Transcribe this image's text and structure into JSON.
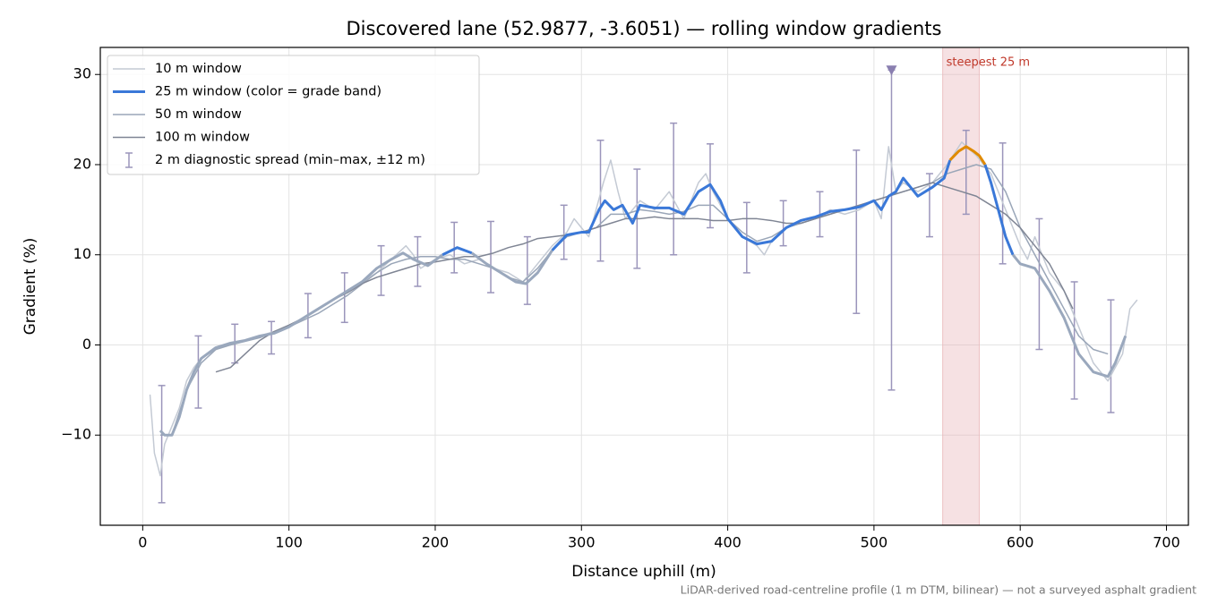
{
  "chart_data": {
    "type": "line",
    "title": "Discovered lane (52.9877, -3.6051) — rolling window gradients",
    "x_label": "Distance uphill (m)",
    "y_label": "Gradient (%)",
    "footnote": "LiDAR-derived road-centreline profile (1 m DTM, bilinear) — not a surveyed asphalt gradient",
    "xlim": [
      -29,
      715
    ],
    "ylim": [
      -20,
      33
    ],
    "xticks": [
      0,
      100,
      200,
      300,
      400,
      500,
      600,
      700
    ],
    "yticks": [
      {
        "value": -10,
        "label": "−10"
      },
      0,
      10,
      20,
      30
    ],
    "grid": true,
    "legend": "upper left",
    "series": [
      {
        "name": "10 m window",
        "color": "#c4cad4",
        "width": 1.5,
        "x": [
          5,
          8,
          12,
          15,
          20,
          25,
          30,
          35,
          40,
          50,
          60,
          70,
          80,
          90,
          100,
          110,
          120,
          130,
          140,
          150,
          160,
          170,
          180,
          185,
          190,
          200,
          210,
          220,
          230,
          240,
          250,
          260,
          270,
          280,
          290,
          295,
          300,
          305,
          310,
          315,
          320,
          325,
          330,
          340,
          350,
          360,
          370,
          380,
          385,
          390,
          400,
          410,
          420,
          425,
          430,
          440,
          450,
          460,
          470,
          480,
          490,
          500,
          505,
          510,
          515,
          520,
          530,
          540,
          550,
          560,
          570,
          580,
          590,
          600,
          605,
          610,
          620,
          630,
          640,
          650,
          660,
          670,
          675,
          680
        ],
        "values": [
          -5.5,
          -12,
          -14.5,
          -11,
          -9,
          -7,
          -4,
          -2.5,
          -1.5,
          -0.5,
          0,
          0.5,
          1,
          1.5,
          2,
          3,
          4,
          5,
          6,
          7,
          8,
          9.5,
          11,
          10,
          8.5,
          9.5,
          10,
          9,
          9.5,
          8.5,
          8,
          7,
          9,
          11,
          12.5,
          14,
          13,
          12,
          15,
          18,
          20.5,
          17,
          14,
          16,
          15,
          17,
          14,
          18,
          19,
          17,
          14,
          12,
          11,
          10,
          11.5,
          13,
          13.5,
          14,
          15,
          14.5,
          15,
          16,
          14,
          22,
          17,
          18,
          17,
          18,
          20,
          22.5,
          21,
          19,
          15,
          11,
          9.5,
          12,
          8,
          6,
          2,
          -2,
          -4,
          -1,
          4,
          5
        ]
      },
      {
        "name": "25 m window (color = grade band)",
        "color": "#3a78d8",
        "width": 3,
        "grade_bands": [
          {
            "below": 10,
            "color": "#9aa8bd"
          },
          {
            "below": 20,
            "color": "#3a78d8"
          },
          {
            "color": "#e08a00"
          }
        ],
        "x": [
          12,
          15,
          20,
          25,
          30,
          35,
          40,
          50,
          60,
          70,
          80,
          90,
          100,
          110,
          120,
          130,
          140,
          150,
          160,
          170,
          178,
          185,
          195,
          205,
          215,
          225,
          235,
          245,
          255,
          262,
          270,
          280,
          290,
          300,
          305,
          312,
          316,
          322,
          328,
          335,
          340,
          350,
          360,
          370,
          380,
          388,
          395,
          400,
          410,
          420,
          430,
          440,
          450,
          460,
          470,
          480,
          490,
          500,
          505,
          510,
          515,
          520,
          525,
          530,
          540,
          548,
          552,
          558,
          563,
          568,
          572,
          576,
          580,
          585,
          590,
          595,
          600,
          610,
          620,
          630,
          640,
          650,
          660,
          665,
          672
        ],
        "values": [
          -9.5,
          -10,
          -10,
          -8,
          -5,
          -3,
          -1.5,
          -0.3,
          0.2,
          0.5,
          1,
          1.3,
          2,
          3,
          4,
          5,
          6,
          7,
          8.5,
          9.5,
          10.2,
          9.5,
          8.8,
          10,
          10.8,
          10.2,
          9,
          8,
          7,
          6.8,
          8,
          10.5,
          12.2,
          12.5,
          12.5,
          15,
          16,
          15,
          15.5,
          13.5,
          15.5,
          15.2,
          15.2,
          14.5,
          17,
          17.8,
          16,
          14,
          12,
          11.2,
          11.5,
          13,
          13.8,
          14.2,
          14.8,
          15,
          15.3,
          16,
          15,
          16.5,
          17,
          18.5,
          17.5,
          16.5,
          17.5,
          18.5,
          20.5,
          21.5,
          22,
          21.5,
          21,
          20,
          18,
          15,
          12,
          10,
          9,
          8.5,
          6,
          3,
          -1,
          -3,
          -3.5,
          -2,
          1
        ]
      },
      {
        "name": "50 m window",
        "color": "#9aa6b8",
        "width": 1.5,
        "x": [
          12,
          20,
          30,
          40,
          50,
          60,
          80,
          100,
          120,
          140,
          160,
          170,
          180,
          190,
          200,
          210,
          220,
          230,
          240,
          250,
          260,
          270,
          280,
          290,
          300,
          310,
          320,
          330,
          340,
          350,
          360,
          370,
          380,
          390,
          400,
          410,
          420,
          430,
          440,
          450,
          460,
          470,
          480,
          490,
          500,
          510,
          520,
          530,
          540,
          550,
          560,
          570,
          580,
          590,
          600,
          610,
          620,
          630,
          640,
          650,
          660
        ],
        "values": [
          -10,
          -10,
          -5,
          -2,
          -0.5,
          0,
          0.8,
          2,
          3.5,
          5.5,
          8,
          9,
          9.5,
          9.8,
          9.8,
          9.5,
          9.5,
          9,
          8.5,
          7.5,
          7,
          8.5,
          10.5,
          12,
          12.5,
          13,
          14.5,
          14.5,
          15,
          14.8,
          14.5,
          14.8,
          15.5,
          15.5,
          14,
          12.5,
          11.5,
          12,
          13,
          13.5,
          14,
          14.5,
          15,
          15.5,
          16,
          16.5,
          17,
          17.5,
          18,
          19,
          19.5,
          20,
          19.5,
          17,
          13,
          10,
          7,
          4,
          1,
          -0.5,
          -1
        ]
      },
      {
        "name": "100 m window",
        "color": "#7f8594",
        "width": 1.5,
        "x": [
          50,
          60,
          70,
          80,
          90,
          100,
          110,
          120,
          130,
          140,
          150,
          160,
          170,
          180,
          190,
          200,
          210,
          220,
          230,
          240,
          250,
          260,
          270,
          280,
          290,
          300,
          310,
          320,
          330,
          340,
          350,
          360,
          370,
          380,
          390,
          400,
          410,
          420,
          430,
          440,
          450,
          460,
          470,
          480,
          490,
          500,
          510,
          520,
          530,
          540,
          550,
          560,
          570,
          580,
          590,
          600,
          610,
          620,
          630,
          636
        ],
        "values": [
          -3,
          -2.5,
          -1,
          0.5,
          1.5,
          2.2,
          3,
          4,
          5,
          5.8,
          6.8,
          7.5,
          8,
          8.5,
          9,
          9.2,
          9.5,
          9.8,
          9.8,
          10.2,
          10.8,
          11.2,
          11.8,
          12,
          12.2,
          12.5,
          13,
          13.5,
          14,
          14,
          14.2,
          14,
          14,
          14,
          13.8,
          13.8,
          14,
          14,
          13.8,
          13.5,
          13.5,
          14,
          14.5,
          15,
          15.5,
          16,
          16.5,
          17,
          17.5,
          18,
          17.5,
          17,
          16.5,
          15.5,
          14.5,
          13,
          11,
          9,
          6,
          4
        ]
      }
    ],
    "errorbars": {
      "name": "2 m diagnostic spread (min–max, ±12 m)",
      "color": "#9b95bb",
      "x": [
        13,
        38,
        63,
        88,
        113,
        138,
        163,
        188,
        213,
        238,
        263,
        288,
        313,
        338,
        363,
        388,
        413,
        438,
        463,
        488,
        512,
        538,
        563,
        588,
        613,
        637,
        662
      ],
      "low": [
        -17.5,
        -7,
        -2,
        -1,
        0.8,
        2.5,
        5.5,
        6.5,
        8,
        5.8,
        4.5,
        9.5,
        9.3,
        8.5,
        10,
        13,
        8,
        11,
        12,
        3.5,
        -5,
        12,
        14.5,
        9,
        -0.5,
        -6,
        -7.5
      ],
      "high": [
        -4.5,
        1,
        2.3,
        2.6,
        5.7,
        8,
        11,
        12,
        13.6,
        13.7,
        12,
        15.5,
        22.7,
        19.5,
        24.6,
        22.3,
        15.8,
        16,
        17,
        21.6,
        30.5,
        19,
        23.8,
        22.4,
        14,
        7,
        5
      ]
    },
    "max_marker": {
      "x": 512,
      "y": 30.5,
      "color": "#8a7fb0"
    },
    "steepest": {
      "label": "steepest 25 m",
      "x0": 547,
      "x1": 572,
      "color": "#e8b4b8",
      "label_color": "#c0392b"
    }
  }
}
